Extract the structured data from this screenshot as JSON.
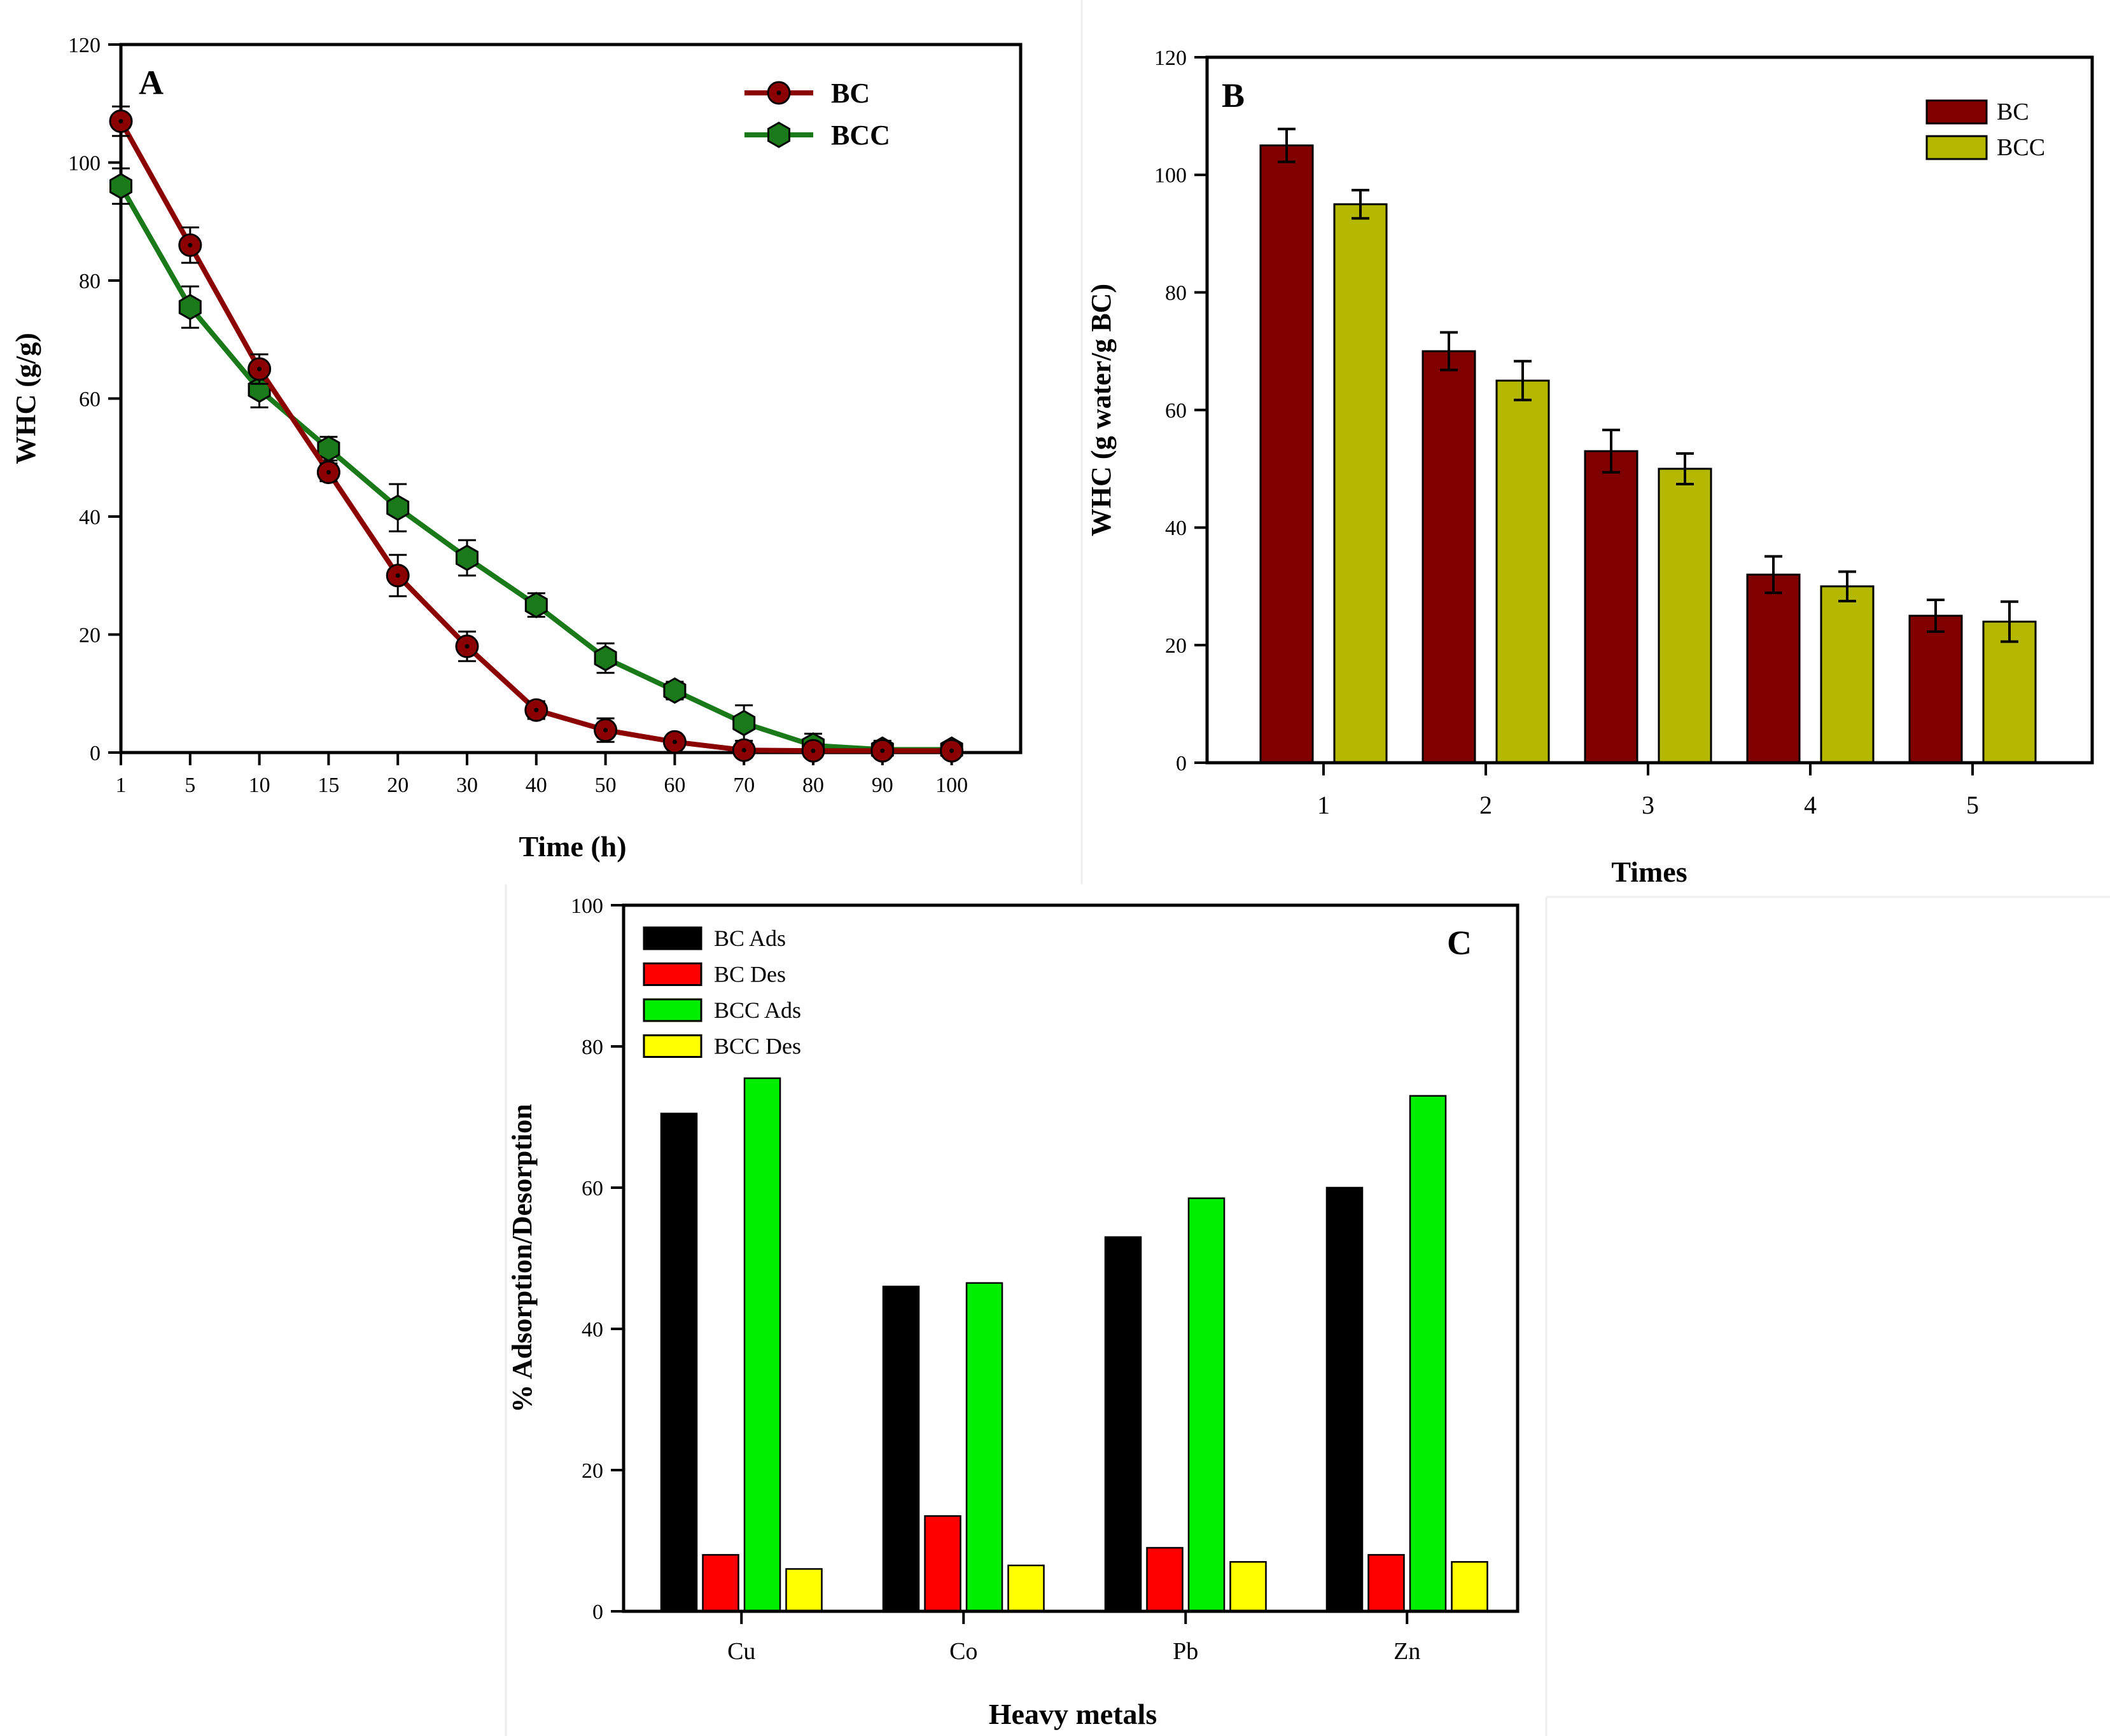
{
  "chart_data": [
    {
      "panel": "A",
      "type": "line",
      "panel_letter": "A",
      "xlabel": "Time (h)",
      "ylabel": "WHC (g/g)",
      "x_categories": [
        "1",
        "5",
        "10",
        "15",
        "20",
        "30",
        "40",
        "50",
        "60",
        "70",
        "80",
        "90",
        "100"
      ],
      "ylim": [
        0,
        120
      ],
      "yticks": [
        "0",
        "20",
        "40",
        "60",
        "80",
        "100",
        "120"
      ],
      "legend_position": "top-right",
      "series": [
        {
          "name": "BC",
          "color": "#8b0000",
          "marker": "circle",
          "values": [
            107,
            86,
            65,
            47.5,
            30,
            18,
            7.2,
            3.8,
            1.8,
            0.4,
            0.3,
            0.3,
            0.3
          ],
          "errors": [
            2.5,
            3.0,
            2.5,
            1.5,
            3.5,
            2.5,
            1.5,
            2.0,
            1.0,
            1.0,
            1.0,
            0.8,
            0.8
          ]
        },
        {
          "name": "BCC",
          "color": "#1a7a1a",
          "marker": "hexagon",
          "values": [
            96,
            75.5,
            61.5,
            51.5,
            41.5,
            33,
            25,
            16,
            10.5,
            5,
            1.2,
            0.5,
            0.5
          ],
          "errors": [
            3.0,
            3.5,
            3.0,
            2.0,
            4.0,
            3.0,
            2.0,
            2.5,
            1.5,
            3.0,
            2.0,
            1.5,
            1.2
          ]
        }
      ]
    },
    {
      "panel": "B",
      "type": "bar",
      "panel_letter": "B",
      "xlabel": "Times",
      "ylabel": "WHC (g water/g BC)",
      "categories": [
        "1",
        "2",
        "3",
        "4",
        "5"
      ],
      "ylim": [
        0,
        120
      ],
      "yticks": [
        "0",
        "20",
        "40",
        "60",
        "80",
        "100",
        "120"
      ],
      "legend_position": "top-right",
      "series": [
        {
          "name": "BC",
          "color": "#800000",
          "values": [
            105,
            70,
            53,
            32,
            25
          ],
          "errors": [
            2.8,
            3.2,
            3.6,
            3.1,
            2.7
          ]
        },
        {
          "name": "BCC",
          "color": "#b5b800",
          "values": [
            95,
            65,
            50,
            30,
            24
          ],
          "errors": [
            2.4,
            3.3,
            2.6,
            2.5,
            3.4
          ]
        }
      ]
    },
    {
      "panel": "C",
      "type": "bar",
      "panel_letter": "C",
      "xlabel": "Heavy metals",
      "ylabel": "% Adsorption/Desorption",
      "categories": [
        "Cu",
        "Co",
        "Pb",
        "Zn"
      ],
      "ylim": [
        0,
        100
      ],
      "yticks": [
        "0",
        "20",
        "40",
        "60",
        "80",
        "100"
      ],
      "legend_position": "top-left",
      "series": [
        {
          "name": "BC Ads",
          "color": "#000000",
          "values": [
            70.5,
            46,
            53,
            60
          ]
        },
        {
          "name": "BC Des",
          "color": "#ff0000",
          "values": [
            8,
            13.5,
            9,
            8
          ]
        },
        {
          "name": "BCC Ads",
          "color": "#00ee00",
          "values": [
            75.5,
            46.5,
            58.5,
            73
          ]
        },
        {
          "name": "BCC Des",
          "color": "#ffff00",
          "values": [
            6,
            6.5,
            7,
            7
          ]
        }
      ]
    }
  ]
}
